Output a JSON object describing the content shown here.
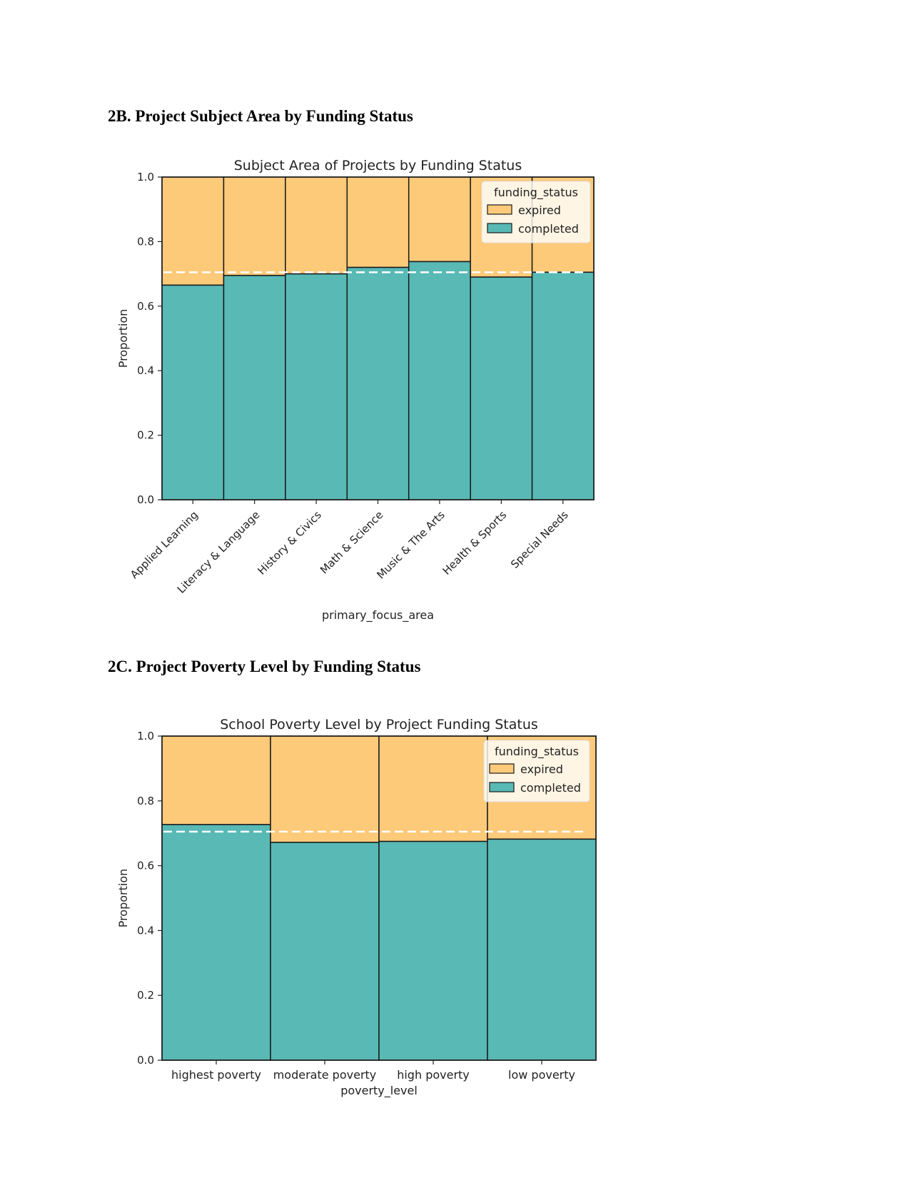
{
  "headings": {
    "h1": "2B. Project Subject Area by Funding Status",
    "h2": "2C. Project Poverty Level by Funding Status"
  },
  "colors": {
    "expired": "#fdca7a",
    "completed": "#58b9b5",
    "edge": "#1a1a1a",
    "reference_line": "#ffffff"
  },
  "chart_data": [
    {
      "type": "bar",
      "stacked": true,
      "title": "Subject Area of Projects by Funding Status",
      "xlabel": "primary_focus_area",
      "ylabel": "Proportion",
      "ylim": [
        0,
        1
      ],
      "yticks": [
        "0.0",
        "0.2",
        "0.4",
        "0.6",
        "0.8",
        "1.0"
      ],
      "tick_rotation": 45,
      "categories": [
        "Applied Learning",
        "Literacy & Language",
        "History & Civics",
        "Math & Science",
        "Music & The Arts",
        "Health & Sports",
        "Special Needs"
      ],
      "series": [
        {
          "name": "completed",
          "values": [
            0.665,
            0.695,
            0.7,
            0.72,
            0.738,
            0.69,
            0.705
          ]
        },
        {
          "name": "expired",
          "values": [
            0.335,
            0.305,
            0.3,
            0.28,
            0.262,
            0.31,
            0.295
          ]
        }
      ],
      "reference_line": 0.705,
      "legend": {
        "title": "funding_status",
        "entries": [
          "expired",
          "completed"
        ],
        "placement": "upper right"
      }
    },
    {
      "type": "bar",
      "stacked": true,
      "title": "School Poverty Level by Project Funding Status",
      "xlabel": "poverty_level",
      "ylabel": "Proportion",
      "ylim": [
        0,
        1
      ],
      "yticks": [
        "0.0",
        "0.2",
        "0.4",
        "0.6",
        "0.8",
        "1.0"
      ],
      "tick_rotation": 0,
      "categories": [
        "highest poverty",
        "moderate poverty",
        "high poverty",
        "low poverty"
      ],
      "series": [
        {
          "name": "completed",
          "values": [
            0.727,
            0.672,
            0.675,
            0.682
          ]
        },
        {
          "name": "expired",
          "values": [
            0.273,
            0.328,
            0.325,
            0.318
          ]
        }
      ],
      "reference_line": 0.705,
      "legend": {
        "title": "funding_status",
        "entries": [
          "expired",
          "completed"
        ],
        "placement": "upper right"
      }
    }
  ]
}
